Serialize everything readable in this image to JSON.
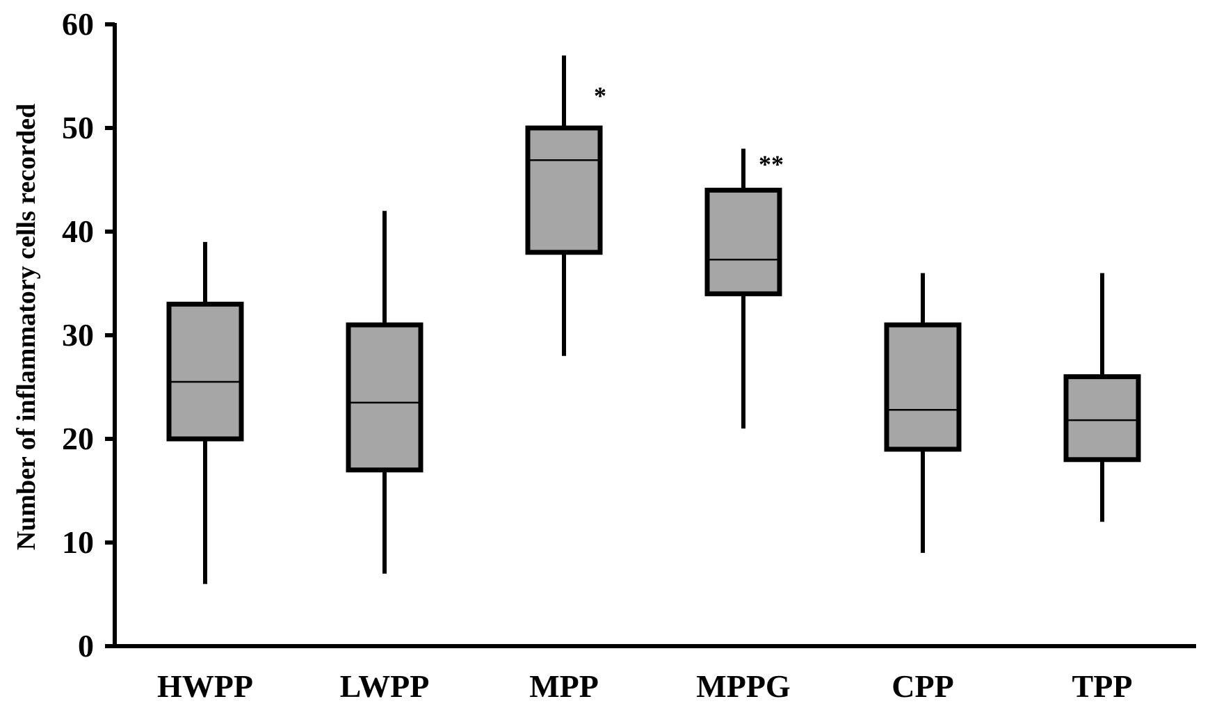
{
  "chart_data": {
    "type": "box",
    "title": "",
    "xlabel": "",
    "ylabel": "Number of inflammatory cells recorded",
    "ylim": [
      0,
      60
    ],
    "yticks": [
      "0",
      "10",
      "20",
      "30",
      "40",
      "50",
      "60"
    ],
    "grid": false,
    "legend": "none",
    "colors": {
      "box_fill": "#a6a6a6",
      "stroke": "#000000",
      "background": "#ffffff"
    },
    "categories": [
      "HWPP",
      "LWPP",
      "MPP",
      "MPPG",
      "CPP",
      "TPP"
    ],
    "boxes": [
      {
        "category": "HWPP",
        "min": 6,
        "q1": 20,
        "median": 25.5,
        "q3": 33,
        "max": 39,
        "annotation": ""
      },
      {
        "category": "LWPP",
        "min": 7,
        "q1": 17,
        "median": 23.5,
        "q3": 31,
        "max": 42,
        "annotation": ""
      },
      {
        "category": "MPP",
        "min": 28,
        "q1": 38,
        "median": 46.9,
        "q3": 50,
        "max": 57,
        "annotation": "*"
      },
      {
        "category": "MPPG",
        "min": 21,
        "q1": 34,
        "median": 37.3,
        "q3": 44,
        "max": 48,
        "annotation": "**"
      },
      {
        "category": "CPP",
        "min": 9,
        "q1": 19,
        "median": 22.8,
        "q3": 31,
        "max": 36,
        "annotation": ""
      },
      {
        "category": "TPP",
        "min": 12,
        "q1": 18,
        "median": 21.8,
        "q3": 26,
        "max": 36,
        "annotation": ""
      }
    ]
  }
}
